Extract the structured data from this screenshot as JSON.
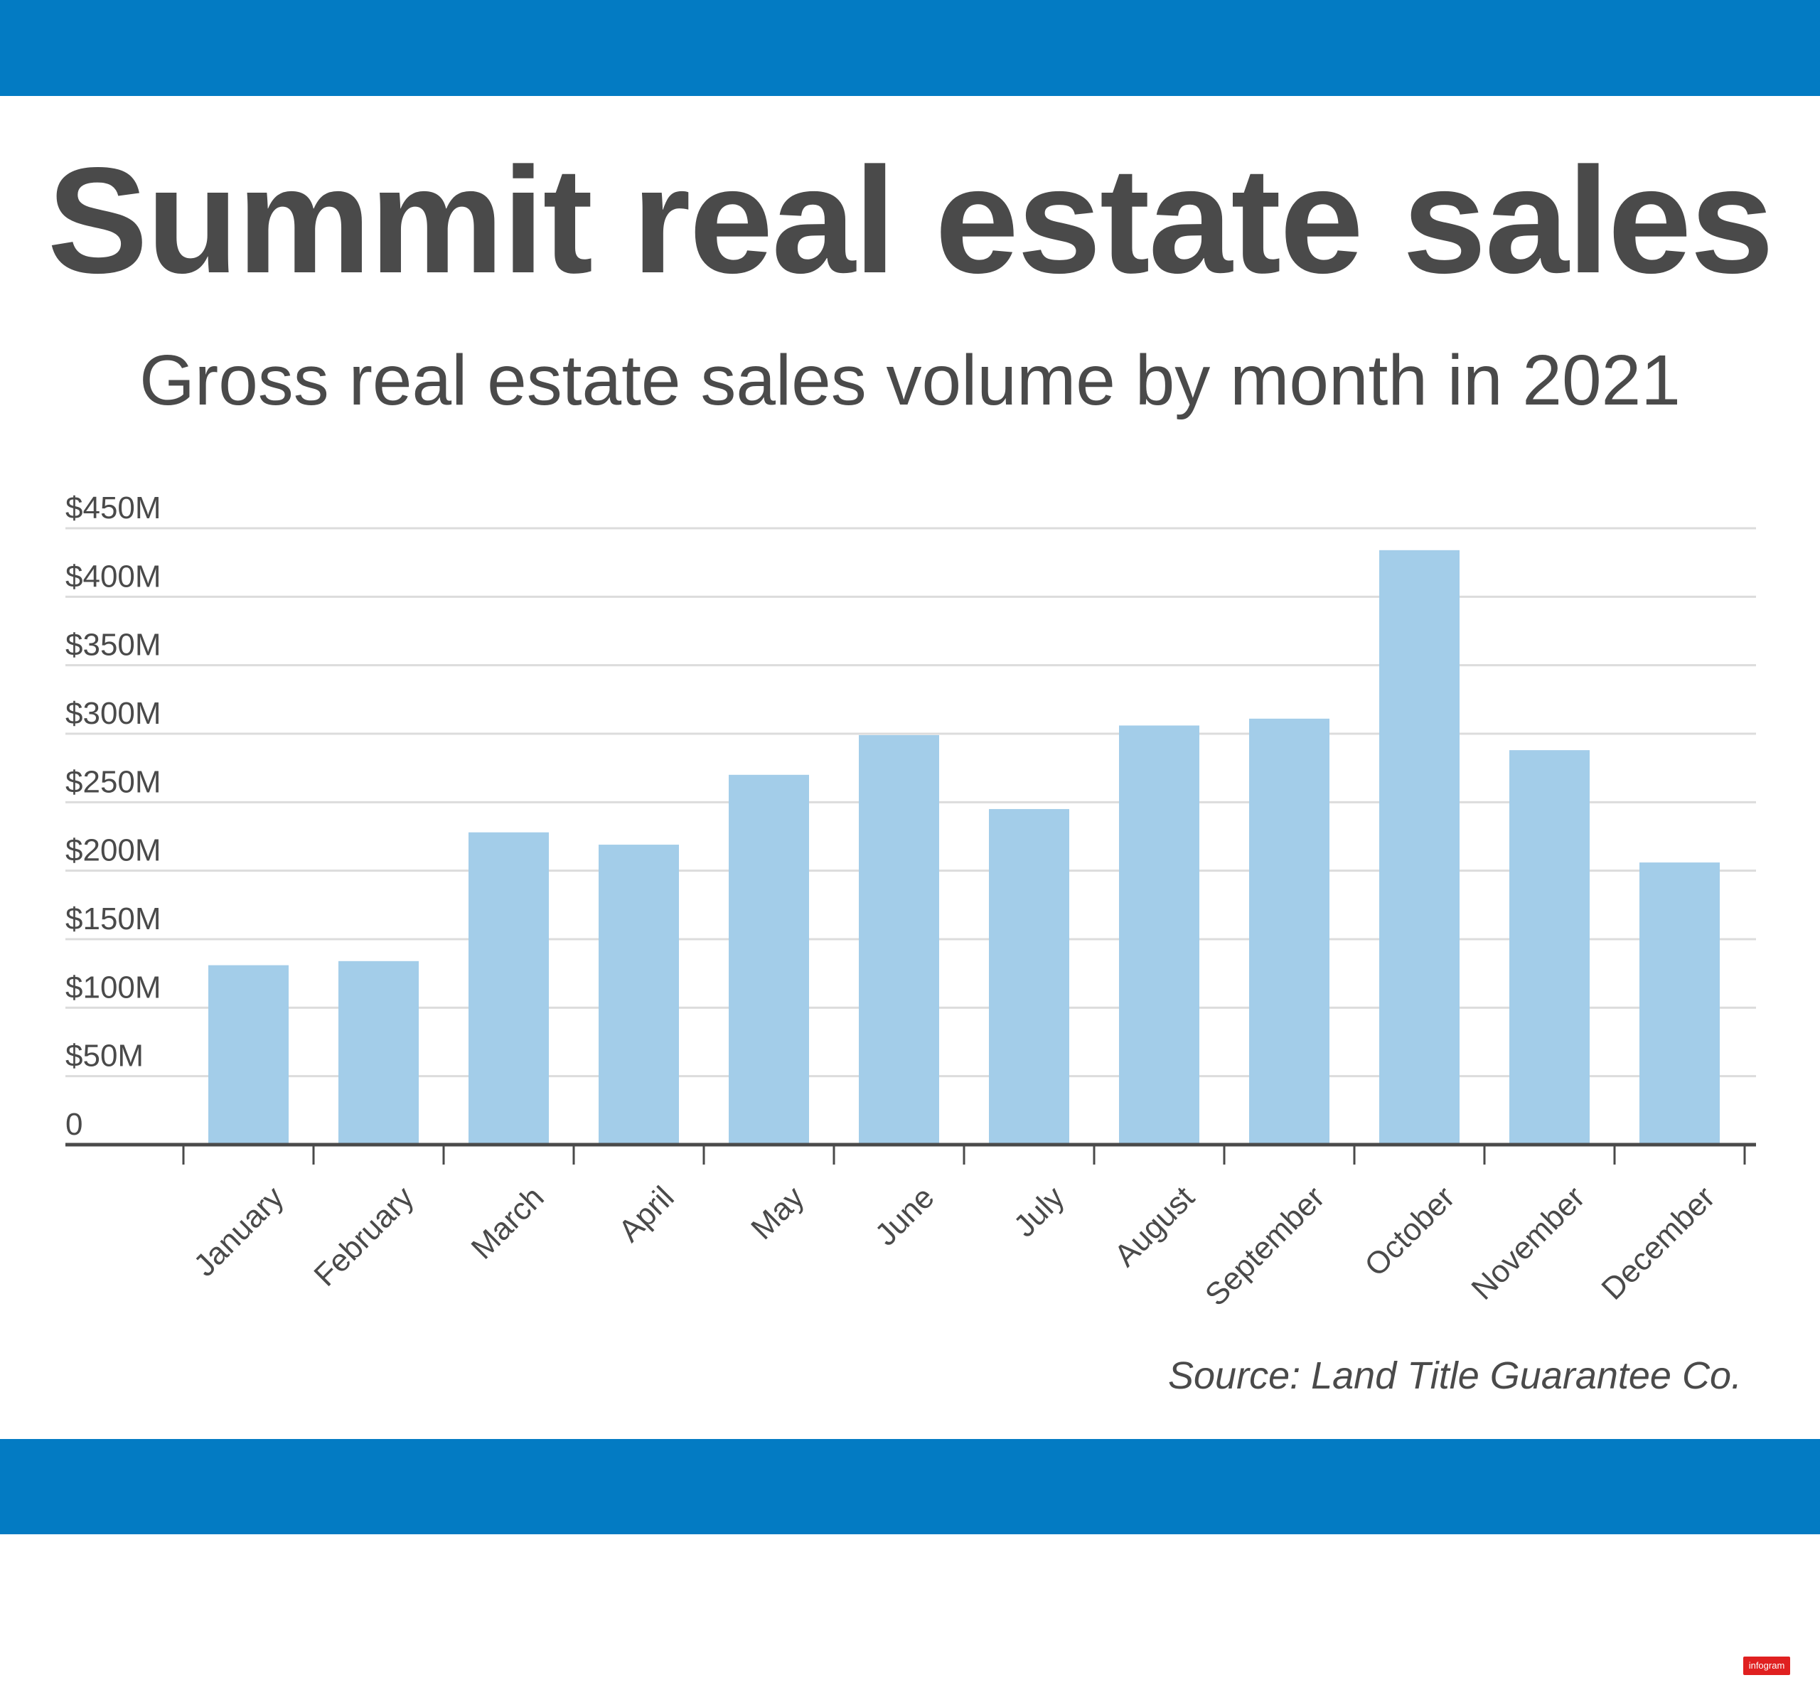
{
  "colors": {
    "band": "#037bc3",
    "bar": "#a3cde9",
    "grid": "#dcdcdc",
    "axis": "#4a4a4a",
    "text": "#4a4a4a"
  },
  "header": {
    "title": "Summit real estate sales",
    "subtitle": "Gross real estate sales volume by month in 2021"
  },
  "footer": {
    "source": "Source: Land Title Guarantee Co.",
    "watermark": "infogram"
  },
  "chart_data": {
    "type": "bar",
    "title": "Summit real estate sales",
    "subtitle": "Gross real estate sales volume by month in 2021",
    "xlabel": "",
    "ylabel": "",
    "categories": [
      "January",
      "February",
      "March",
      "April",
      "May",
      "June",
      "July",
      "August",
      "September",
      "October",
      "November",
      "December"
    ],
    "values": [
      131,
      134,
      228,
      219,
      270,
      299,
      245,
      306,
      311,
      434,
      288,
      206
    ],
    "value_unit": "$M",
    "ylim": [
      0,
      450
    ],
    "y_ticks": [
      0,
      50,
      100,
      150,
      200,
      250,
      300,
      350,
      400,
      450
    ],
    "y_tick_labels": [
      "0",
      "$50M",
      "$100M",
      "$150M",
      "$200M",
      "$250M",
      "$300M",
      "$350M",
      "$400M",
      "$450M"
    ],
    "grid": true,
    "legend": "none"
  }
}
